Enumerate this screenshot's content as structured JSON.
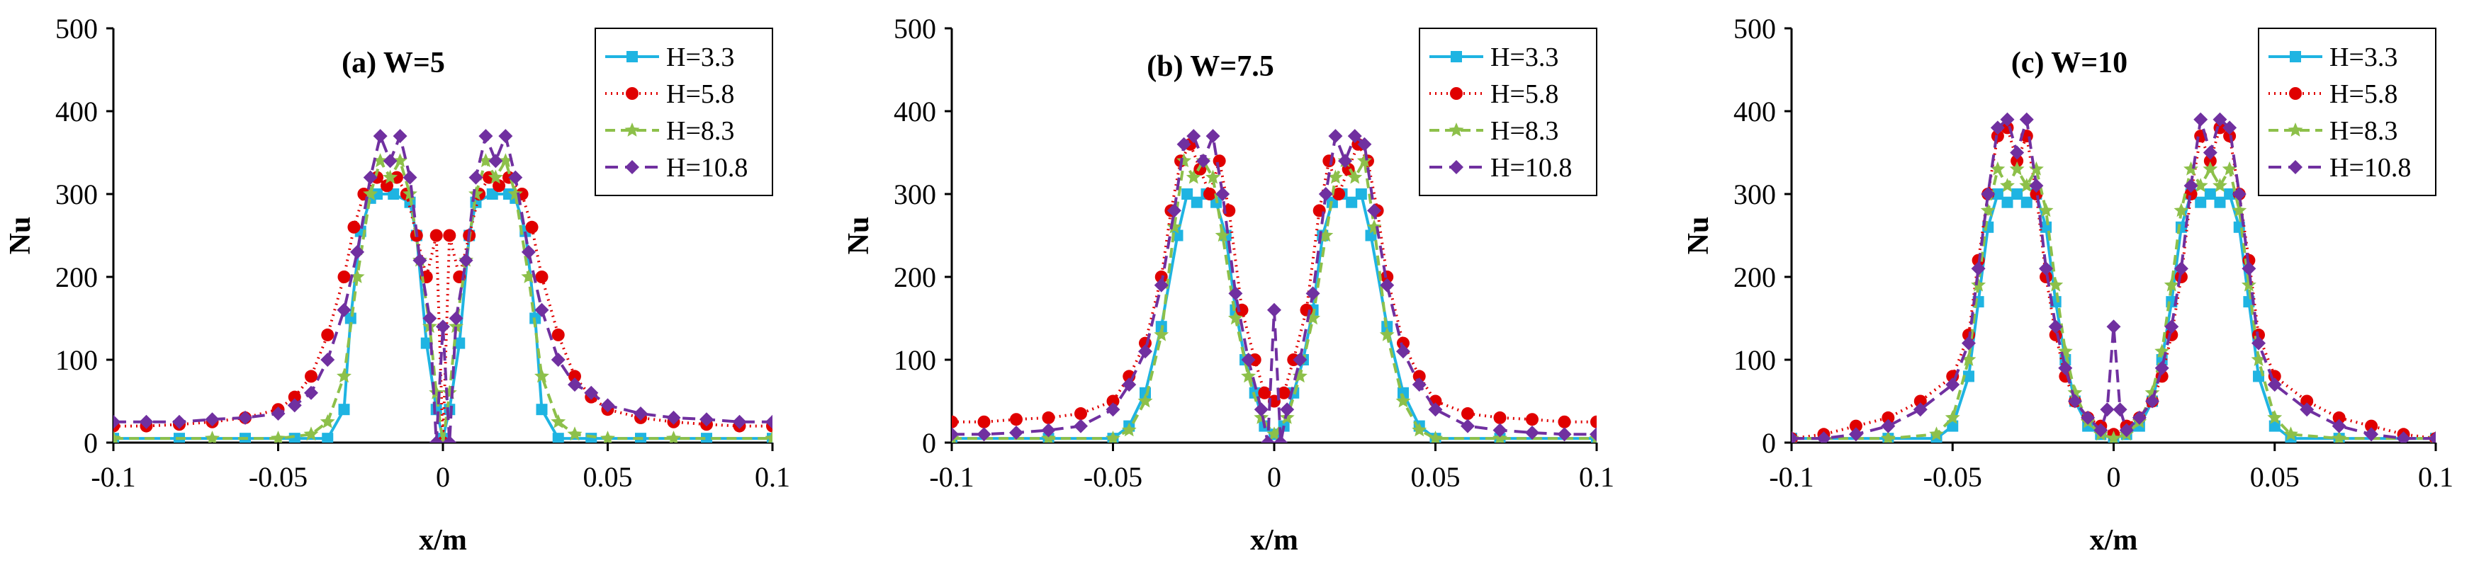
{
  "chart_data": [
    {
      "type": "line",
      "title": "(a) W=5",
      "xlabel": "x/m",
      "ylabel": "Nu",
      "xlim": [
        -0.1,
        0.1
      ],
      "ylim": [
        0,
        500
      ],
      "xticks": [
        -0.1,
        -0.05,
        0,
        0.05,
        0.1
      ],
      "xtick_labels": [
        "-0.1",
        "-0.05",
        "0",
        "0.05",
        "0.1"
      ],
      "yticks": [
        0,
        100,
        200,
        300,
        400,
        500
      ],
      "ytick_labels": [
        "0",
        "100",
        "200",
        "300",
        "400",
        "500"
      ],
      "legend_position": "top-right",
      "series": [
        {
          "name": "H=3.3",
          "x": [
            -0.1,
            -0.08,
            -0.06,
            -0.045,
            -0.035,
            -0.03,
            -0.028,
            -0.025,
            -0.022,
            -0.02,
            -0.015,
            -0.01,
            -0.008,
            -0.005,
            -0.002,
            0,
            0.002,
            0.005,
            0.008,
            0.01,
            0.015,
            0.02,
            0.022,
            0.025,
            0.028,
            0.03,
            0.035,
            0.045,
            0.06,
            0.08,
            0.1
          ],
          "y": [
            5,
            5,
            5,
            5,
            5,
            40,
            150,
            255,
            295,
            300,
            300,
            290,
            250,
            120,
            40,
            5,
            40,
            120,
            250,
            290,
            300,
            300,
            295,
            255,
            150,
            40,
            5,
            5,
            5,
            5,
            5
          ]
        },
        {
          "name": "H=5.8",
          "x": [
            -0.1,
            -0.09,
            -0.08,
            -0.07,
            -0.06,
            -0.05,
            -0.045,
            -0.04,
            -0.035,
            -0.03,
            -0.027,
            -0.024,
            -0.02,
            -0.017,
            -0.014,
            -0.011,
            -0.008,
            -0.005,
            -0.002,
            0,
            0.002,
            0.005,
            0.008,
            0.011,
            0.014,
            0.017,
            0.02,
            0.024,
            0.027,
            0.03,
            0.035,
            0.04,
            0.045,
            0.05,
            0.06,
            0.07,
            0.08,
            0.09,
            0.1
          ],
          "y": [
            20,
            20,
            22,
            25,
            30,
            40,
            55,
            80,
            130,
            200,
            260,
            300,
            320,
            310,
            320,
            300,
            250,
            200,
            250,
            0,
            250,
            200,
            250,
            300,
            320,
            310,
            320,
            300,
            260,
            200,
            130,
            80,
            55,
            40,
            30,
            25,
            22,
            20,
            20
          ]
        },
        {
          "name": "H=8.3",
          "x": [
            -0.1,
            -0.07,
            -0.05,
            -0.04,
            -0.035,
            -0.03,
            -0.026,
            -0.022,
            -0.019,
            -0.016,
            -0.013,
            -0.01,
            -0.007,
            -0.004,
            -0.002,
            0,
            0.002,
            0.004,
            0.007,
            0.01,
            0.013,
            0.016,
            0.019,
            0.022,
            0.026,
            0.03,
            0.035,
            0.04,
            0.05,
            0.07,
            0.1
          ],
          "y": [
            5,
            5,
            5,
            10,
            25,
            80,
            200,
            300,
            340,
            320,
            340,
            300,
            220,
            140,
            60,
            0,
            60,
            140,
            220,
            300,
            340,
            320,
            340,
            300,
            200,
            80,
            25,
            10,
            5,
            5,
            5
          ]
        },
        {
          "name": "H=10.8",
          "x": [
            -0.1,
            -0.09,
            -0.08,
            -0.07,
            -0.06,
            -0.05,
            -0.045,
            -0.04,
            -0.035,
            -0.03,
            -0.026,
            -0.022,
            -0.019,
            -0.016,
            -0.013,
            -0.01,
            -0.007,
            -0.004,
            -0.002,
            0,
            0.002,
            0.004,
            0.007,
            0.01,
            0.013,
            0.016,
            0.019,
            0.022,
            0.026,
            0.03,
            0.035,
            0.04,
            0.045,
            0.05,
            0.06,
            0.07,
            0.08,
            0.09,
            0.1
          ],
          "y": [
            25,
            25,
            25,
            28,
            30,
            35,
            45,
            60,
            100,
            160,
            230,
            320,
            370,
            340,
            370,
            320,
            220,
            150,
            0,
            140,
            0,
            150,
            220,
            320,
            370,
            340,
            370,
            320,
            230,
            160,
            100,
            70,
            60,
            45,
            35,
            30,
            28,
            25,
            25
          ]
        }
      ]
    },
    {
      "type": "line",
      "title": "(b) W=7.5",
      "xlabel": "x/m",
      "ylabel": "Nu",
      "xlim": [
        -0.1,
        0.1
      ],
      "ylim": [
        0,
        500
      ],
      "xticks": [
        -0.1,
        -0.05,
        0,
        0.05,
        0.1
      ],
      "xtick_labels": [
        "-0.1",
        "-0.05",
        "0",
        "0.05",
        "0.1"
      ],
      "yticks": [
        0,
        100,
        200,
        300,
        400,
        500
      ],
      "ytick_labels": [
        "0",
        "100",
        "200",
        "300",
        "400",
        "500"
      ],
      "legend_position": "top-right",
      "series": [
        {
          "name": "H=3.3",
          "x": [
            -0.1,
            -0.07,
            -0.05,
            -0.045,
            -0.04,
            -0.035,
            -0.03,
            -0.027,
            -0.024,
            -0.021,
            -0.018,
            -0.015,
            -0.012,
            -0.009,
            -0.006,
            -0.003,
            0,
            0.003,
            0.006,
            0.009,
            0.012,
            0.015,
            0.018,
            0.021,
            0.024,
            0.027,
            0.03,
            0.035,
            0.04,
            0.045,
            0.05,
            0.07,
            0.1
          ],
          "y": [
            5,
            5,
            5,
            20,
            60,
            140,
            250,
            300,
            290,
            300,
            290,
            250,
            160,
            100,
            60,
            20,
            10,
            20,
            60,
            100,
            160,
            250,
            290,
            300,
            290,
            300,
            250,
            140,
            60,
            20,
            5,
            5,
            5
          ]
        },
        {
          "name": "H=5.8",
          "x": [
            -0.1,
            -0.09,
            -0.08,
            -0.07,
            -0.06,
            -0.05,
            -0.045,
            -0.04,
            -0.035,
            -0.032,
            -0.029,
            -0.026,
            -0.023,
            -0.02,
            -0.017,
            -0.014,
            -0.01,
            -0.006,
            -0.003,
            0,
            0.003,
            0.006,
            0.01,
            0.014,
            0.017,
            0.02,
            0.023,
            0.026,
            0.029,
            0.032,
            0.035,
            0.04,
            0.045,
            0.05,
            0.06,
            0.07,
            0.08,
            0.09,
            0.1
          ],
          "y": [
            25,
            25,
            28,
            30,
            35,
            50,
            80,
            120,
            200,
            280,
            340,
            360,
            330,
            300,
            340,
            280,
            160,
            100,
            60,
            50,
            60,
            100,
            160,
            280,
            340,
            300,
            330,
            360,
            340,
            280,
            200,
            120,
            80,
            50,
            35,
            30,
            28,
            25,
            25
          ]
        },
        {
          "name": "H=8.3",
          "x": [
            -0.1,
            -0.07,
            -0.05,
            -0.045,
            -0.04,
            -0.035,
            -0.031,
            -0.028,
            -0.025,
            -0.022,
            -0.019,
            -0.016,
            -0.012,
            -0.008,
            -0.004,
            0,
            0.004,
            0.008,
            0.012,
            0.016,
            0.019,
            0.022,
            0.025,
            0.028,
            0.031,
            0.035,
            0.04,
            0.045,
            0.05,
            0.07,
            0.1
          ],
          "y": [
            5,
            5,
            5,
            15,
            50,
            130,
            260,
            340,
            320,
            340,
            320,
            250,
            150,
            80,
            30,
            10,
            30,
            80,
            150,
            250,
            320,
            340,
            320,
            340,
            260,
            130,
            50,
            15,
            5,
            5,
            5
          ]
        },
        {
          "name": "H=10.8",
          "x": [
            -0.1,
            -0.09,
            -0.08,
            -0.07,
            -0.06,
            -0.05,
            -0.045,
            -0.04,
            -0.035,
            -0.031,
            -0.028,
            -0.025,
            -0.022,
            -0.019,
            -0.016,
            -0.012,
            -0.008,
            -0.004,
            -0.002,
            0,
            0.002,
            0.004,
            0.008,
            0.012,
            0.016,
            0.019,
            0.022,
            0.025,
            0.028,
            0.031,
            0.035,
            0.04,
            0.045,
            0.05,
            0.06,
            0.07,
            0.08,
            0.09,
            0.1
          ],
          "y": [
            10,
            10,
            12,
            15,
            20,
            40,
            70,
            110,
            190,
            280,
            360,
            370,
            340,
            370,
            300,
            180,
            100,
            40,
            0,
            160,
            0,
            40,
            100,
            180,
            300,
            370,
            340,
            370,
            360,
            280,
            190,
            110,
            70,
            40,
            20,
            15,
            12,
            10,
            10
          ]
        }
      ]
    },
    {
      "type": "line",
      "title": "(c) W=10",
      "xlabel": "x/m",
      "ylabel": "Nu",
      "xlim": [
        -0.1,
        0.1
      ],
      "ylim": [
        0,
        500
      ],
      "xticks": [
        -0.1,
        -0.05,
        0,
        0.05,
        0.1
      ],
      "xtick_labels": [
        "-0.1",
        "-0.05",
        "0",
        "0.05",
        "0.1"
      ],
      "yticks": [
        0,
        100,
        200,
        300,
        400,
        500
      ],
      "ytick_labels": [
        "0",
        "100",
        "200",
        "300",
        "400",
        "500"
      ],
      "legend_position": "top-right",
      "series": [
        {
          "name": "H=3.3",
          "x": [
            -0.1,
            -0.07,
            -0.055,
            -0.05,
            -0.045,
            -0.042,
            -0.039,
            -0.036,
            -0.033,
            -0.03,
            -0.027,
            -0.024,
            -0.021,
            -0.018,
            -0.015,
            -0.012,
            -0.008,
            -0.004,
            0,
            0.004,
            0.008,
            0.012,
            0.015,
            0.018,
            0.021,
            0.024,
            0.027,
            0.03,
            0.033,
            0.036,
            0.039,
            0.042,
            0.045,
            0.05,
            0.055,
            0.07,
            0.1
          ],
          "y": [
            5,
            5,
            5,
            20,
            80,
            170,
            260,
            300,
            290,
            300,
            290,
            300,
            260,
            170,
            100,
            50,
            20,
            10,
            5,
            10,
            20,
            50,
            100,
            170,
            260,
            300,
            290,
            300,
            290,
            300,
            260,
            170,
            80,
            20,
            5,
            5,
            5
          ]
        },
        {
          "name": "H=5.8",
          "x": [
            -0.1,
            -0.09,
            -0.08,
            -0.07,
            -0.06,
            -0.05,
            -0.045,
            -0.042,
            -0.039,
            -0.036,
            -0.033,
            -0.03,
            -0.027,
            -0.024,
            -0.021,
            -0.018,
            -0.015,
            -0.012,
            -0.008,
            -0.004,
            0,
            0.004,
            0.008,
            0.012,
            0.015,
            0.018,
            0.021,
            0.024,
            0.027,
            0.03,
            0.033,
            0.036,
            0.039,
            0.042,
            0.045,
            0.05,
            0.06,
            0.07,
            0.08,
            0.09,
            0.1
          ],
          "y": [
            5,
            10,
            20,
            30,
            50,
            80,
            130,
            220,
            300,
            370,
            380,
            340,
            370,
            300,
            200,
            130,
            80,
            50,
            30,
            20,
            10,
            20,
            30,
            50,
            80,
            130,
            200,
            300,
            370,
            340,
            380,
            370,
            300,
            220,
            130,
            80,
            50,
            30,
            20,
            10,
            5
          ]
        },
        {
          "name": "H=8.3",
          "x": [
            -0.1,
            -0.07,
            -0.055,
            -0.05,
            -0.045,
            -0.042,
            -0.039,
            -0.036,
            -0.033,
            -0.03,
            -0.027,
            -0.024,
            -0.021,
            -0.018,
            -0.015,
            -0.012,
            -0.008,
            -0.004,
            0,
            0.004,
            0.008,
            0.012,
            0.015,
            0.018,
            0.021,
            0.024,
            0.027,
            0.03,
            0.033,
            0.036,
            0.039,
            0.042,
            0.045,
            0.05,
            0.055,
            0.07,
            0.1
          ],
          "y": [
            5,
            5,
            10,
            30,
            100,
            190,
            280,
            330,
            310,
            330,
            310,
            330,
            280,
            190,
            110,
            60,
            25,
            10,
            5,
            10,
            25,
            60,
            110,
            190,
            280,
            330,
            310,
            330,
            310,
            330,
            280,
            190,
            100,
            30,
            10,
            5,
            5
          ]
        },
        {
          "name": "H=10.8",
          "x": [
            -0.1,
            -0.09,
            -0.08,
            -0.07,
            -0.06,
            -0.05,
            -0.045,
            -0.042,
            -0.039,
            -0.036,
            -0.033,
            -0.03,
            -0.027,
            -0.024,
            -0.021,
            -0.018,
            -0.015,
            -0.012,
            -0.008,
            -0.004,
            -0.002,
            0,
            0.002,
            0.004,
            0.008,
            0.012,
            0.015,
            0.018,
            0.021,
            0.024,
            0.027,
            0.03,
            0.033,
            0.036,
            0.039,
            0.042,
            0.045,
            0.05,
            0.06,
            0.07,
            0.08,
            0.09,
            0.1
          ],
          "y": [
            5,
            5,
            10,
            20,
            40,
            70,
            120,
            210,
            300,
            380,
            390,
            350,
            390,
            310,
            210,
            140,
            90,
            50,
            30,
            15,
            40,
            140,
            40,
            15,
            30,
            50,
            90,
            140,
            210,
            310,
            390,
            350,
            390,
            380,
            300,
            210,
            120,
            70,
            40,
            20,
            10,
            5,
            5
          ]
        }
      ]
    }
  ],
  "legend": [
    {
      "label": "H=3.3",
      "color": "#1FB4E2",
      "marker": "square",
      "dash": "solid"
    },
    {
      "label": "H=5.8",
      "color": "#E00000",
      "marker": "circle",
      "dash": "dotted"
    },
    {
      "label": "H=8.3",
      "color": "#8DC04A",
      "marker": "star",
      "dash": "dashed"
    },
    {
      "label": "H=10.8",
      "color": "#7030A0",
      "marker": "diamond",
      "dash": "longdash"
    }
  ]
}
